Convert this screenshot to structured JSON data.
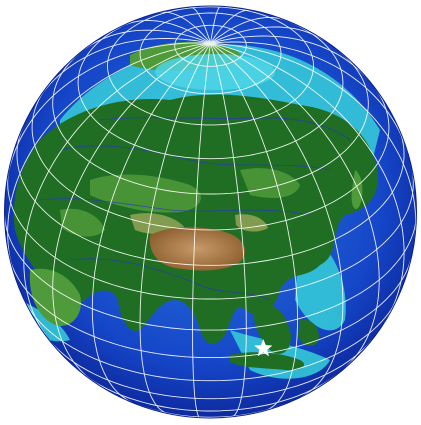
{
  "map": {
    "projection": "orthographic",
    "center_lat": 35,
    "center_lon": 95,
    "graticule_meridian_step_deg": 15,
    "graticule_parallel_step_deg": 10,
    "colors": {
      "deep_ocean": "#0a1f8f",
      "ocean": "#1546c8",
      "shallow_ocean": "#2b7bdc",
      "shelf": "#35c8d8",
      "lowland": "#1f6e23",
      "midland": "#4f9a3a",
      "upland": "#9aa85a",
      "plateau": "#8a5a2a",
      "peak": "#c79a6a",
      "ice": "#4fd6e6",
      "graticule": "#ffffff",
      "contour": "#2b2bd8",
      "marker": "#ffffff"
    },
    "marker": {
      "symbol": "star",
      "lat": -8,
      "lon": 110
    }
  }
}
